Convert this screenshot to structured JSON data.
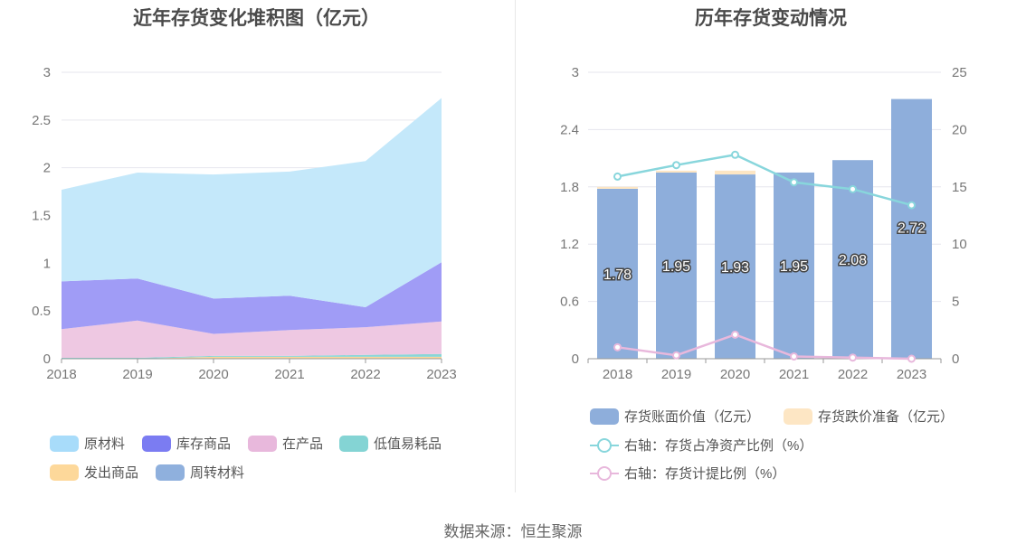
{
  "source_text": "数据来源：恒生聚源",
  "chart_data": [
    {
      "type": "area",
      "stacked": true,
      "title": "近年存货变化堆积图（亿元）",
      "categories": [
        "2018",
        "2019",
        "2020",
        "2021",
        "2022",
        "2023"
      ],
      "ylim": [
        0,
        3
      ],
      "yticks": [
        "0",
        "0.5",
        "1",
        "1.5",
        "2",
        "2.5",
        "3"
      ],
      "grid": true,
      "legend_position": "bottom",
      "series": [
        {
          "name": "周转材料",
          "color": "#8fb0dd",
          "values": [
            0.0,
            0.0,
            0.0,
            0.0,
            0.0,
            0.0
          ]
        },
        {
          "name": "发出商品",
          "color": "#fdd89a",
          "values": [
            0.0,
            0.0,
            0.02,
            0.02,
            0.02,
            0.02
          ]
        },
        {
          "name": "低值易耗品",
          "color": "#8ad6d6",
          "values": [
            0.01,
            0.01,
            0.01,
            0.01,
            0.02,
            0.03
          ]
        },
        {
          "name": "在产品",
          "color": "#eec8e2",
          "values": [
            0.3,
            0.39,
            0.23,
            0.27,
            0.29,
            0.34
          ]
        },
        {
          "name": "库存商品",
          "color": "#a09cf6",
          "values": [
            0.5,
            0.44,
            0.37,
            0.36,
            0.21,
            0.62
          ]
        },
        {
          "name": "原材料",
          "color": "#c4e8fa",
          "values": [
            0.96,
            1.11,
            1.3,
            1.3,
            1.53,
            1.72
          ]
        }
      ],
      "legend": [
        {
          "name": "原材料",
          "color": "#a8dcfa"
        },
        {
          "name": "库存商品",
          "color": "#7b7cf2"
        },
        {
          "name": "在产品",
          "color": "#e8b8dc"
        },
        {
          "name": "低值易耗品",
          "color": "#84d4d4"
        },
        {
          "name": "发出商品",
          "color": "#fdd89a"
        },
        {
          "name": "周转材料",
          "color": "#8fb0dd"
        }
      ]
    },
    {
      "type": "bar",
      "title": "历年存货变动情况",
      "categories": [
        "2018",
        "2019",
        "2020",
        "2021",
        "2022",
        "2023"
      ],
      "ylim": [
        0,
        3
      ],
      "yticks": [
        "0",
        "0.6",
        "1.2",
        "1.8",
        "2.4",
        "3"
      ],
      "y2lim": [
        0,
        25
      ],
      "y2ticks": [
        "0",
        "5",
        "10",
        "15",
        "20",
        "25"
      ],
      "grid": true,
      "legend_position": "bottom",
      "series": [
        {
          "name": "存货账面价值（亿元）",
          "type": "bar",
          "axis": "left",
          "color": "#8eaedb",
          "values": [
            1.78,
            1.95,
            1.93,
            1.95,
            2.08,
            2.72
          ],
          "labels": [
            "1.78",
            "1.95",
            "1.93",
            "1.95",
            "2.08",
            "2.72"
          ]
        },
        {
          "name": "存货跌价准备（亿元）",
          "type": "bar",
          "axis": "left",
          "color": "#fde6c4",
          "values": [
            0.02,
            0.02,
            0.04,
            0.0,
            0.0,
            0.0
          ]
        },
        {
          "name": "右轴：存货占净资产比例（%）",
          "type": "line",
          "axis": "right",
          "color": "#88d6dc",
          "values": [
            15.9,
            16.9,
            17.8,
            15.4,
            14.8,
            13.4
          ]
        },
        {
          "name": "右轴：存货计提比例（%）",
          "type": "line",
          "axis": "right",
          "color": "#e8b8dc",
          "values": [
            1.0,
            0.3,
            2.1,
            0.2,
            0.1,
            0.0
          ]
        }
      ]
    }
  ]
}
